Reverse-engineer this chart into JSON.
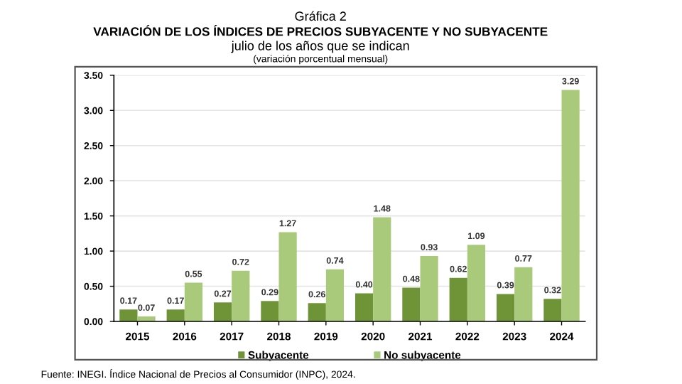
{
  "chart_data": {
    "type": "bar",
    "title": "VARIACIÓN DE LOS ÍNDICES DE PRECIOS SUBYACENTE Y NO SUBYACENTE",
    "subtitle": "julio de los años que se indican",
    "annotations": [
      "Gráfica 2",
      "(variación porcentual mensual)",
      "Fuente: INEGI. Índice Nacional de Precios al Consumidor (INPC), 2024."
    ],
    "categories": [
      "2015",
      "2016",
      "2017",
      "2018",
      "2019",
      "2020",
      "2021",
      "2022",
      "2023",
      "2024"
    ],
    "series": [
      {
        "name": "Subyacente",
        "color": "#6f9438",
        "values": [
          0.17,
          0.17,
          0.27,
          0.29,
          0.26,
          0.4,
          0.48,
          0.62,
          0.39,
          0.32
        ],
        "value_labels": [
          "0.17",
          "0.17",
          "0.27",
          "0.29",
          "0.26",
          "0.40",
          "0.48",
          "0.62",
          "0.39",
          "0.32"
        ]
      },
      {
        "name": "No subyacente",
        "color": "#a9c97b",
        "values": [
          0.07,
          0.55,
          0.72,
          1.27,
          0.74,
          1.48,
          0.93,
          1.09,
          0.77,
          3.29
        ],
        "value_labels": [
          "0.07",
          "0.55",
          "0.72",
          "1.27",
          "0.74",
          "1.48",
          "0.93",
          "1.09",
          "0.77",
          "3.29"
        ]
      }
    ],
    "ylim": [
      0,
      3.5
    ],
    "yticks": [
      {
        "value": 0,
        "label": "0.00"
      },
      {
        "value": 0.5,
        "label": "0.50"
      },
      {
        "value": 1,
        "label": "1.00"
      },
      {
        "value": 1.5,
        "label": "1.50"
      },
      {
        "value": 2,
        "label": "2.00"
      },
      {
        "value": 2.5,
        "label": "2.50"
      },
      {
        "value": 3,
        "label": "3.00"
      },
      {
        "value": 3.5,
        "label": "3.50"
      }
    ],
    "grid": "y",
    "legend": "bottom"
  }
}
